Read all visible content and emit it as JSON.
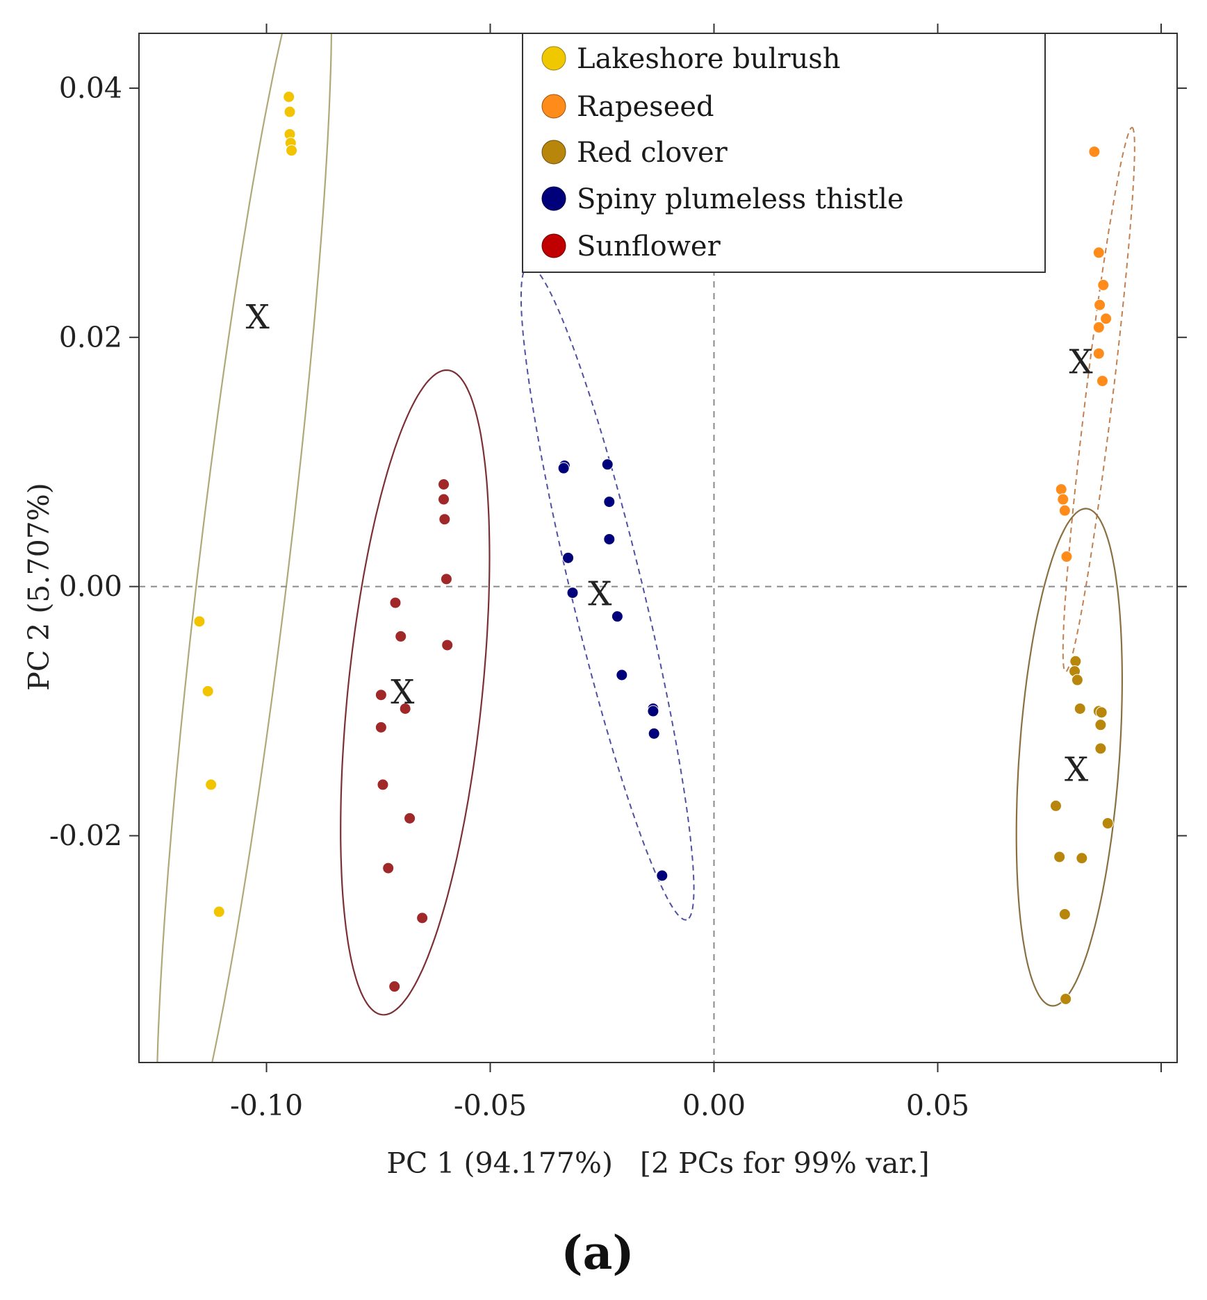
{
  "chart_data": {
    "type": "scatter",
    "panel_label": "(a)",
    "xlabel": "PC 1 (94.177%)   [2 PCs for 99% var.]",
    "ylabel": "PC 2 (5.707%)",
    "xlim": [
      -0.1285,
      0.1035
    ],
    "ylim": [
      -0.0382,
      0.0444
    ],
    "x_ticks": [
      -0.1,
      -0.05,
      0.0,
      0.05
    ],
    "x_tick_labels": [
      "-0.10",
      "-0.05",
      "0.00",
      "0.05"
    ],
    "y_ticks": [
      0.04,
      0.02,
      0.0,
      -0.02
    ],
    "y_tick_labels": [
      "0.04",
      "0.02",
      "0.00",
      "-0.02"
    ],
    "reference_lines": {
      "x": 0.0,
      "y": 0.0
    },
    "legend": {
      "placement": "top-center",
      "entries": [
        {
          "label": "Lakeshore bulrush",
          "color": "#f0c800"
        },
        {
          "label": "Rapeseed",
          "color": "#ff8c1a"
        },
        {
          "label": "Red clover",
          "color": "#b8860b"
        },
        {
          "label": "Spiny plumeless thistle",
          "color": "#00007a"
        },
        {
          "label": "Sunflower",
          "color": "#c00000"
        }
      ]
    },
    "series": [
      {
        "name": "Lakeshore bulrush",
        "color": "#f0c800",
        "point_color": "#f2c400",
        "centroid": {
          "x": -0.102,
          "y": 0.0216,
          "label": "X"
        },
        "points": [
          {
            "x": -0.095,
            "y": 0.0393
          },
          {
            "x": -0.0948,
            "y": 0.0381
          },
          {
            "x": -0.0948,
            "y": 0.0363
          },
          {
            "x": -0.0946,
            "y": 0.0356
          },
          {
            "x": -0.0944,
            "y": 0.035
          },
          {
            "x": -0.115,
            "y": -0.0028
          },
          {
            "x": -0.1131,
            "y": -0.0084
          },
          {
            "x": -0.1124,
            "y": -0.0159
          },
          {
            "x": -0.1106,
            "y": -0.0261
          }
        ],
        "ellipse": {
          "style": "solid",
          "color": "#b0a878",
          "center": {
            "x": -0.105,
            "y": 0.002
          },
          "semi_major": 0.051,
          "semi_minor": 0.01,
          "open_at_plot_edges": true
        }
      },
      {
        "name": "Rapeseed",
        "color": "#ff8c1a",
        "point_color": "#ff8c1a",
        "centroid": {
          "x": 0.082,
          "y": 0.018,
          "label": "X"
        },
        "points": [
          {
            "x": 0.085,
            "y": 0.0349
          },
          {
            "x": 0.086,
            "y": 0.0268
          },
          {
            "x": 0.087,
            "y": 0.0242
          },
          {
            "x": 0.0862,
            "y": 0.0226
          },
          {
            "x": 0.0876,
            "y": 0.0215
          },
          {
            "x": 0.086,
            "y": 0.0208
          },
          {
            "x": 0.086,
            "y": 0.0187
          },
          {
            "x": 0.0868,
            "y": 0.0165
          },
          {
            "x": 0.0776,
            "y": 0.0078
          },
          {
            "x": 0.078,
            "y": 0.007
          },
          {
            "x": 0.0784,
            "y": 0.0061
          },
          {
            "x": 0.0788,
            "y": 0.0024
          }
        ],
        "ellipse": {
          "style": "dashed",
          "color": "#c08050",
          "center": {
            "x": 0.086,
            "y": 0.015
          },
          "semi_major": 0.022,
          "semi_minor": 0.003,
          "open_at_plot_edges": true
        }
      },
      {
        "name": "Red clover",
        "color": "#b8860b",
        "point_color": "#b8860b",
        "centroid": {
          "x": 0.081,
          "y": -0.0147,
          "label": "X"
        },
        "points": [
          {
            "x": 0.0808,
            "y": -0.006
          },
          {
            "x": 0.0806,
            "y": -0.0068
          },
          {
            "x": 0.0812,
            "y": -0.0075
          },
          {
            "x": 0.0818,
            "y": -0.0098
          },
          {
            "x": 0.086,
            "y": -0.01
          },
          {
            "x": 0.0866,
            "y": -0.0101
          },
          {
            "x": 0.0864,
            "y": -0.0111
          },
          {
            "x": 0.0864,
            "y": -0.013
          },
          {
            "x": 0.0764,
            "y": -0.0176
          },
          {
            "x": 0.088,
            "y": -0.019
          },
          {
            "x": 0.0772,
            "y": -0.0217
          },
          {
            "x": 0.0822,
            "y": -0.0218
          },
          {
            "x": 0.0784,
            "y": -0.0263
          },
          {
            "x": 0.0786,
            "y": -0.0331
          }
        ],
        "ellipse": {
          "style": "solid",
          "color": "#8a7040",
          "center": {
            "x": 0.0794,
            "y": -0.0137
          },
          "semi_major": 0.02,
          "semi_minor": 0.0112
        }
      },
      {
        "name": "Spiny plumeless thistle",
        "color": "#00007a",
        "point_color": "#00007a",
        "centroid": {
          "x": -0.0255,
          "y": -0.0006,
          "label": "X"
        },
        "points": [
          {
            "x": -0.0334,
            "y": 0.0097
          },
          {
            "x": -0.0336,
            "y": 0.0095
          },
          {
            "x": -0.0238,
            "y": 0.0098
          },
          {
            "x": -0.0234,
            "y": 0.0068
          },
          {
            "x": -0.0234,
            "y": 0.0038
          },
          {
            "x": -0.0326,
            "y": 0.0023
          },
          {
            "x": -0.0316,
            "y": -0.0005
          },
          {
            "x": -0.0216,
            "y": -0.0024
          },
          {
            "x": -0.0206,
            "y": -0.0071
          },
          {
            "x": -0.0136,
            "y": -0.0098
          },
          {
            "x": -0.0134,
            "y": -0.0118
          },
          {
            "x": -0.0136,
            "y": -0.01
          },
          {
            "x": -0.0116,
            "y": -0.0232
          }
        ],
        "ellipse": {
          "style": "dashed",
          "color": "#5050a0",
          "center": {
            "x": -0.0238,
            "y": -0.0005
          },
          "semi_major": 0.027,
          "semi_minor": 0.008
        }
      },
      {
        "name": "Sunflower",
        "color": "#c00000",
        "point_color": "#a02828",
        "centroid": {
          "x": -0.0696,
          "y": -0.0085,
          "label": "X"
        },
        "points": [
          {
            "x": -0.0604,
            "y": 0.0082
          },
          {
            "x": -0.0604,
            "y": 0.007
          },
          {
            "x": -0.0602,
            "y": 0.0054
          },
          {
            "x": -0.0598,
            "y": 0.0006
          },
          {
            "x": -0.0712,
            "y": -0.0013
          },
          {
            "x": -0.07,
            "y": -0.004
          },
          {
            "x": -0.0596,
            "y": -0.0047
          },
          {
            "x": -0.0744,
            "y": -0.0087
          },
          {
            "x": -0.069,
            "y": -0.0098
          },
          {
            "x": -0.0744,
            "y": -0.0113
          },
          {
            "x": -0.074,
            "y": -0.0159
          },
          {
            "x": -0.068,
            "y": -0.0186
          },
          {
            "x": -0.0728,
            "y": -0.0226
          },
          {
            "x": -0.0652,
            "y": -0.0266
          },
          {
            "x": -0.0714,
            "y": -0.0321
          }
        ],
        "ellipse": {
          "style": "solid",
          "color": "#7a3035",
          "center": {
            "x": -0.0668,
            "y": -0.0085
          },
          "semi_major": 0.026,
          "semi_minor": 0.015
        }
      }
    ]
  }
}
